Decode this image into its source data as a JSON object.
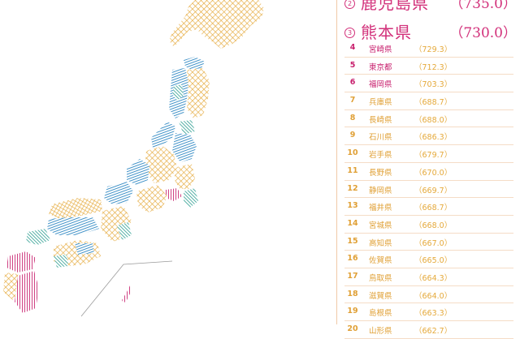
{
  "colors": {
    "tier1": "#c8216e",
    "tier2": "#2a9d8f",
    "tier3": "#e5a93a",
    "tier4": "#2c86c2",
    "line": "#f0c9a8",
    "outline": "#777777"
  },
  "top": [
    {
      "rank": "2",
      "name": "鹿児島県",
      "score": "（735.0）"
    },
    {
      "rank": "3",
      "name": "熊本県",
      "score": "（730.0）"
    }
  ],
  "rankings": [
    {
      "rank": "4",
      "name": "宮崎県",
      "score": "（729.3）",
      "color": "#c8216e"
    },
    {
      "rank": "5",
      "name": "東京都",
      "score": "（712.3）",
      "color": "#c8216e"
    },
    {
      "rank": "6",
      "name": "福岡県",
      "score": "（703.3）",
      "color": "#c8216e"
    },
    {
      "rank": "7",
      "name": "兵庫県",
      "score": "（688.7）",
      "color": "#e0a036"
    },
    {
      "rank": "8",
      "name": "長崎県",
      "score": "（688.0）",
      "color": "#e0a036"
    },
    {
      "rank": "9",
      "name": "石川県",
      "score": "（686.3）",
      "color": "#e0a036"
    },
    {
      "rank": "10",
      "name": "岩手県",
      "score": "（679.7）",
      "color": "#e0a036"
    },
    {
      "rank": "11",
      "name": "長野県",
      "score": "（670.0）",
      "color": "#e0a036"
    },
    {
      "rank": "12",
      "name": "静岡県",
      "score": "（669.7）",
      "color": "#e0a036"
    },
    {
      "rank": "13",
      "name": "福井県",
      "score": "（668.7）",
      "color": "#e0a036"
    },
    {
      "rank": "14",
      "name": "宮城県",
      "score": "（668.0）",
      "color": "#e0a036"
    },
    {
      "rank": "15",
      "name": "高知県",
      "score": "（667.0）",
      "color": "#e0a036"
    },
    {
      "rank": "16",
      "name": "佐賀県",
      "score": "（665.0）",
      "color": "#e0a036"
    },
    {
      "rank": "17",
      "name": "鳥取県",
      "score": "（664.3）",
      "color": "#e0a036"
    },
    {
      "rank": "18",
      "name": "滋賀県",
      "score": "（664.0）",
      "color": "#e0a036"
    },
    {
      "rank": "19",
      "name": "島根県",
      "score": "（663.3）",
      "color": "#e0a036"
    },
    {
      "rank": "20",
      "name": "山形県",
      "score": "（662.7）",
      "color": "#e0a036"
    }
  ]
}
